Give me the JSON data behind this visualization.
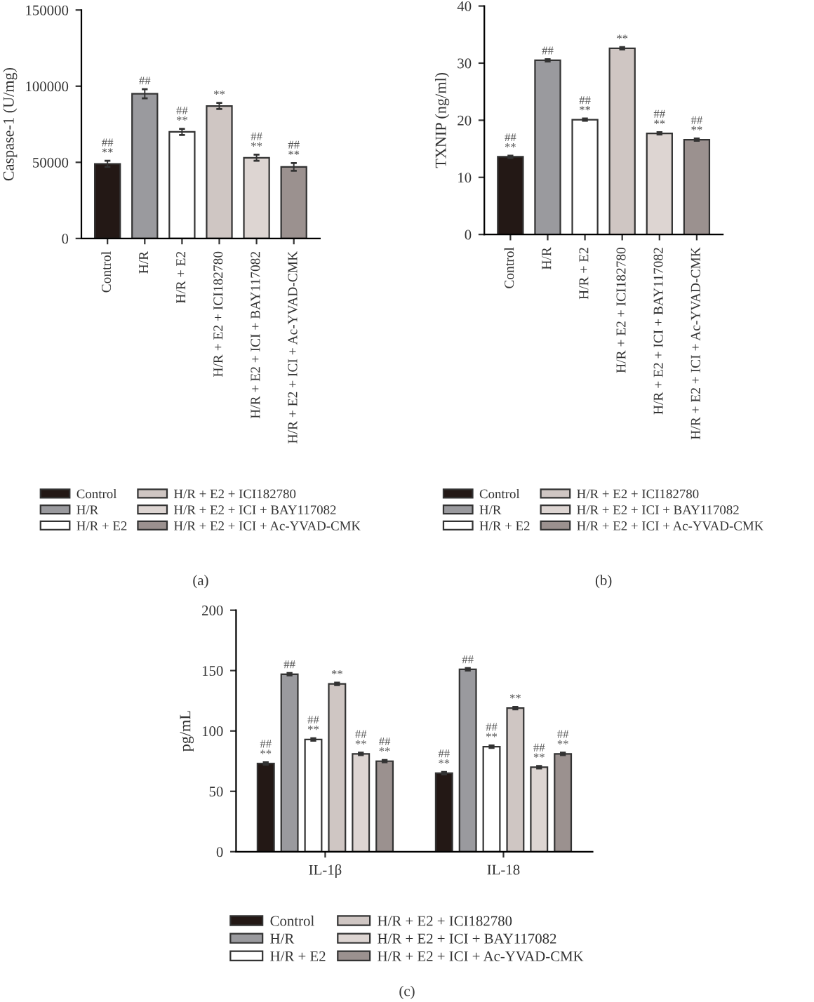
{
  "chart_data": [
    {
      "type": "bar",
      "stacked": true,
      "ylabel": "Caspase-1 (U/mg)",
      "categories": [
        "Control",
        "H/R",
        "H/R + E2",
        "H/R + E2 + ICI182780",
        "H/R + E2 + ICI + BAY117082",
        "H/R + E2 + ICI + Ac-YVAD-CMK"
      ],
      "series": [
        {
          "name": "Control",
          "color": "#231815",
          "values": [
            49000,
            null,
            null,
            null,
            null,
            null
          ],
          "errors": [
            2000,
            null,
            null,
            null,
            null,
            null
          ],
          "value_labels": [
            "##\n**",
            null,
            null,
            null,
            null,
            null
          ]
        },
        {
          "name": "H/R",
          "color": "#9a9a9e",
          "values": [
            null,
            95000,
            null,
            null,
            null,
            null
          ],
          "errors": [
            null,
            3000,
            null,
            null,
            null,
            null
          ],
          "value_labels": [
            null,
            "##",
            null,
            null,
            null,
            null
          ]
        },
        {
          "name": "H/R + E2",
          "color": "#ffffff",
          "values": [
            null,
            null,
            70000,
            null,
            null,
            null
          ],
          "errors": [
            null,
            null,
            2000,
            null,
            null,
            null
          ],
          "value_labels": [
            null,
            null,
            "##\n**",
            null,
            null,
            null
          ]
        },
        {
          "name": "H/R + E2 + ICI182780",
          "color": "#cfc6c3",
          "values": [
            null,
            null,
            null,
            87000,
            null,
            null
          ],
          "errors": [
            null,
            null,
            null,
            2000,
            null,
            null
          ],
          "value_labels": [
            null,
            null,
            null,
            "**",
            null,
            null
          ]
        },
        {
          "name": "H/R + E2 + ICI + BAY117082",
          "color": "#ddd5d2",
          "values": [
            null,
            null,
            null,
            null,
            53000,
            null
          ],
          "errors": [
            null,
            null,
            null,
            null,
            2000,
            null
          ],
          "value_labels": [
            null,
            null,
            null,
            null,
            "##\n**",
            null
          ]
        },
        {
          "name": "H/R + E2 + ICI + Ac-YVAD-CMK",
          "color": "#9b918f",
          "values": [
            null,
            null,
            null,
            null,
            null,
            47000
          ],
          "errors": [
            null,
            null,
            null,
            null,
            null,
            2500
          ],
          "value_labels": [
            null,
            null,
            null,
            null,
            null,
            "##\n**"
          ]
        }
      ],
      "ylim": [
        0,
        150000
      ],
      "yticks": [
        0,
        50000,
        100000,
        150000
      ],
      "grid": false,
      "legend": "bottom",
      "annotations": [
        "(a)"
      ]
    },
    {
      "type": "bar",
      "stacked": true,
      "ylabel": "TXNIP (ng/ml)",
      "categories": [
        "Control",
        "H/R",
        "H/R + E2",
        "H/R + E2 + ICI182780",
        "H/R + E2 + ICI + BAY117082",
        "H/R + E2 + ICI + Ac-YVAD-CMK"
      ],
      "series": [
        {
          "name": "Control",
          "color": "#231815",
          "values": [
            13.6,
            null,
            null,
            null,
            null,
            null
          ],
          "errors": [
            0.2,
            null,
            null,
            null,
            null,
            null
          ],
          "value_labels": [
            "##\n**",
            null,
            null,
            null,
            null,
            null
          ]
        },
        {
          "name": "H/R",
          "color": "#9a9a9e",
          "values": [
            null,
            30.5,
            null,
            null,
            null,
            null
          ],
          "errors": [
            null,
            0.2,
            null,
            null,
            null,
            null
          ],
          "value_labels": [
            null,
            "##",
            null,
            null,
            null,
            null
          ]
        },
        {
          "name": "H/R + E2",
          "color": "#ffffff",
          "values": [
            null,
            null,
            20.1,
            null,
            null,
            null
          ],
          "errors": [
            null,
            null,
            0.2,
            null,
            null,
            null
          ],
          "value_labels": [
            null,
            null,
            "##\n**",
            null,
            null,
            null
          ]
        },
        {
          "name": "H/R + E2 + ICI182780",
          "color": "#cfc6c3",
          "values": [
            null,
            null,
            null,
            32.6,
            null,
            null
          ],
          "errors": [
            null,
            null,
            null,
            0.2,
            null,
            null
          ],
          "value_labels": [
            null,
            null,
            null,
            "**",
            null,
            null
          ]
        },
        {
          "name": "H/R + E2 + ICI + BAY117082",
          "color": "#ddd5d2",
          "values": [
            null,
            null,
            null,
            null,
            17.7,
            null
          ],
          "errors": [
            null,
            null,
            null,
            null,
            0.2,
            null
          ],
          "value_labels": [
            null,
            null,
            null,
            null,
            "##\n**",
            null
          ]
        },
        {
          "name": "H/R + E2 + ICI + Ac-YVAD-CMK",
          "color": "#9b918f",
          "values": [
            null,
            null,
            null,
            null,
            null,
            16.6
          ],
          "errors": [
            null,
            null,
            null,
            null,
            null,
            0.2
          ],
          "value_labels": [
            null,
            null,
            null,
            null,
            null,
            "##\n**"
          ]
        }
      ],
      "ylim": [
        0,
        40
      ],
      "yticks": [
        0,
        10,
        20,
        30,
        40
      ],
      "grid": false,
      "legend": "bottom",
      "annotations": [
        "(b)"
      ]
    },
    {
      "type": "bar",
      "ylabel": "pg/mL",
      "categories": [
        "IL-1β",
        "IL-18"
      ],
      "series": [
        {
          "name": "Control",
          "color": "#231815",
          "values": [
            73,
            65
          ],
          "errors": [
            1,
            1
          ],
          "value_labels": [
            "##\n**",
            "##\n**"
          ]
        },
        {
          "name": "H/R",
          "color": "#9a9a9e",
          "values": [
            147,
            151
          ],
          "errors": [
            1,
            1
          ],
          "value_labels": [
            "##",
            "##"
          ]
        },
        {
          "name": "H/R + E2",
          "color": "#ffffff",
          "values": [
            93,
            87
          ],
          "errors": [
            1,
            1
          ],
          "value_labels": [
            "##\n**",
            "##\n**"
          ]
        },
        {
          "name": "H/R + E2 + ICI182780",
          "color": "#cfc6c3",
          "values": [
            139,
            119
          ],
          "errors": [
            1,
            1
          ],
          "value_labels": [
            "**",
            "**"
          ]
        },
        {
          "name": "H/R + E2 + ICI + BAY117082",
          "color": "#ddd5d2",
          "values": [
            81,
            70
          ],
          "errors": [
            1,
            1
          ],
          "value_labels": [
            "##\n**",
            "##\n**"
          ]
        },
        {
          "name": "H/R + E2 + ICI + Ac-YVAD-CMK",
          "color": "#9b918f",
          "values": [
            75,
            81
          ],
          "errors": [
            1,
            1
          ],
          "value_labels": [
            "##\n**",
            "##\n**"
          ]
        }
      ],
      "ylim": [
        0,
        200
      ],
      "yticks": [
        0,
        50,
        100,
        150,
        200
      ],
      "grid": false,
      "legend": "bottom",
      "annotations": [
        "(c)"
      ]
    }
  ]
}
